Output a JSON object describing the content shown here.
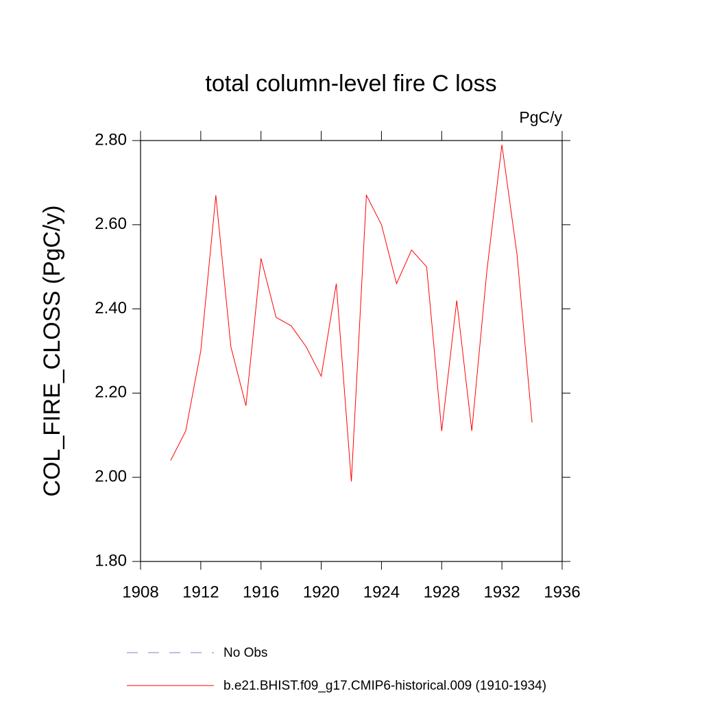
{
  "chart_data": {
    "type": "line",
    "title": "total column-level fire C loss",
    "units": "PgC/y",
    "ylabel": "COL_FIRE_CLOSS  (PgC/y)",
    "x": [
      1910,
      1911,
      1912,
      1913,
      1914,
      1915,
      1916,
      1917,
      1918,
      1919,
      1920,
      1921,
      1922,
      1923,
      1924,
      1925,
      1926,
      1927,
      1928,
      1929,
      1930,
      1931,
      1932,
      1933,
      1934
    ],
    "series": [
      {
        "name": "No Obs",
        "color": "#8080c8",
        "dash": true,
        "values": [
          null,
          null,
          null,
          null,
          null,
          null,
          null,
          null,
          null,
          null,
          null,
          null,
          null,
          null,
          null,
          null,
          null,
          null,
          null,
          null,
          null,
          null,
          null,
          null,
          null
        ]
      },
      {
        "name": "b.e21.BHIST.f09_g17.CMIP6-historical.009 (1910-1934)",
        "color": "#ff0000",
        "dash": false,
        "values": [
          2.04,
          2.11,
          2.3,
          2.67,
          2.31,
          2.17,
          2.52,
          2.38,
          2.36,
          2.31,
          2.24,
          2.46,
          1.99,
          2.67,
          2.6,
          2.46,
          2.54,
          2.5,
          2.11,
          2.42,
          2.11,
          2.49,
          2.79,
          2.53,
          2.13
        ]
      }
    ],
    "xlim": [
      1908,
      1936
    ],
    "xticks": [
      1908,
      1912,
      1916,
      1920,
      1924,
      1928,
      1932,
      1936
    ],
    "ylim": [
      1.8,
      2.8
    ],
    "yticks": [
      {
        "value": 1.8,
        "label": "1.80"
      },
      {
        "value": 2.0,
        "label": "2.00"
      },
      {
        "value": 2.2,
        "label": "2.20"
      },
      {
        "value": 2.4,
        "label": "2.40"
      },
      {
        "value": 2.6,
        "label": "2.60"
      },
      {
        "value": 2.8,
        "label": "2.80"
      }
    ],
    "grid": false
  }
}
